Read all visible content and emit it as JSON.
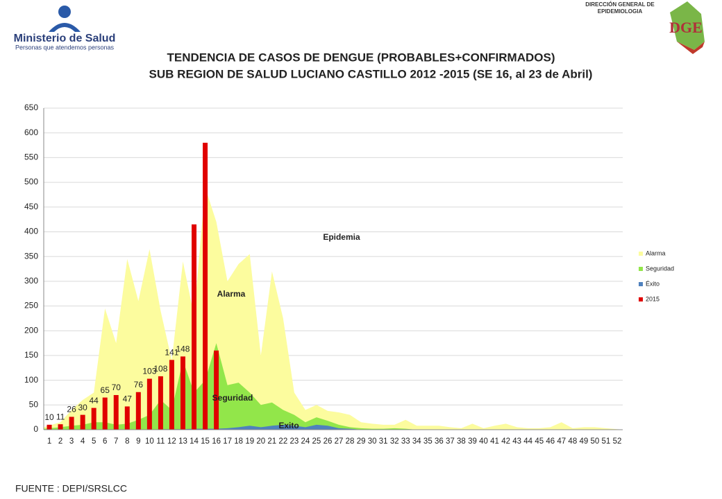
{
  "header": {
    "ministry": "Ministerio de Salud",
    "slogan": "Personas que atendemos personas",
    "agency_line1": "DIRECCIÓN GENERAL DE",
    "agency_line2": "EPIDEMIOLOGIA",
    "agency_logo": "DGE"
  },
  "footer": {
    "source": "FUENTE : DEPI/SRSLCC"
  },
  "chart_data": {
    "type": "combo",
    "title": "TENDENCIA DE CASOS DE DENGUE (PROBABLES+CONFIRMADOS)",
    "subtitle": "SUB REGION DE SALUD LUCIANO CASTILLO 2012 -2015 (SE 16, al 23 de Abril)",
    "annotations": [
      "Epidemia",
      "Alarma",
      "Seguridad",
      "Exito"
    ],
    "categories": [
      "1",
      "2",
      "3",
      "4",
      "5",
      "6",
      "7",
      "8",
      "9",
      "10",
      "11",
      "12",
      "13",
      "14",
      "15",
      "16",
      "17",
      "18",
      "19",
      "20",
      "21",
      "22",
      "23",
      "24",
      "25",
      "26",
      "27",
      "28",
      "29",
      "30",
      "31",
      "32",
      "33",
      "34",
      "35",
      "36",
      "37",
      "38",
      "39",
      "40",
      "41",
      "42",
      "43",
      "44",
      "45",
      "46",
      "47",
      "48",
      "49",
      "50",
      "51",
      "52"
    ],
    "ylim": [
      0,
      650
    ],
    "yticks": [
      0,
      50,
      100,
      150,
      200,
      250,
      300,
      350,
      400,
      450,
      500,
      550,
      600,
      650
    ],
    "grid": true,
    "legend": "right",
    "series": [
      {
        "name": "Alarma",
        "type": "area",
        "color": "#fcfc9e",
        "values": [
          5,
          15,
          40,
          60,
          75,
          245,
          175,
          345,
          260,
          365,
          240,
          140,
          340,
          230,
          490,
          420,
          300,
          335,
          355,
          150,
          320,
          225,
          75,
          40,
          50,
          38,
          35,
          30,
          15,
          12,
          10,
          10,
          20,
          8,
          8,
          8,
          5,
          3,
          12,
          3,
          8,
          12,
          5,
          3,
          3,
          5,
          15,
          3,
          5,
          5,
          3,
          0
        ]
      },
      {
        "name": "Seguridad",
        "type": "area",
        "color": "#92e64a",
        "values": [
          2,
          5,
          8,
          10,
          15,
          15,
          10,
          12,
          20,
          30,
          60,
          40,
          140,
          75,
          100,
          175,
          90,
          95,
          75,
          50,
          55,
          40,
          30,
          15,
          25,
          18,
          10,
          5,
          3,
          2,
          2,
          3,
          2,
          0,
          0,
          0,
          0,
          0,
          0,
          0,
          0,
          0,
          0,
          0,
          0,
          0,
          0,
          0,
          0,
          0,
          0,
          0
        ]
      },
      {
        "name": "Éxito",
        "type": "area",
        "color": "#4f81bd",
        "values": [
          0,
          0,
          0,
          0,
          0,
          0,
          0,
          0,
          0,
          0,
          1,
          1,
          1,
          2,
          2,
          2,
          3,
          5,
          8,
          5,
          8,
          10,
          8,
          5,
          10,
          8,
          3,
          2,
          0,
          0,
          0,
          0,
          0,
          0,
          0,
          0,
          0,
          0,
          0,
          0,
          0,
          0,
          0,
          0,
          0,
          0,
          0,
          0,
          0,
          0,
          0,
          0
        ]
      },
      {
        "name": "2015",
        "type": "bar",
        "color": "#e00000",
        "values": [
          10,
          11,
          26,
          30,
          44,
          65,
          70,
          47,
          76,
          103,
          108,
          141,
          148,
          415,
          580,
          160,
          null,
          null,
          null,
          null,
          null,
          null,
          null,
          null,
          null,
          null,
          null,
          null,
          null,
          null,
          null,
          null,
          null,
          null,
          null,
          null,
          null,
          null,
          null,
          null,
          null,
          null,
          null,
          null,
          null,
          null,
          null,
          null,
          null,
          null,
          null,
          null
        ],
        "value_labels": [
          "10",
          "11",
          "26",
          "30",
          "44",
          "65",
          "70",
          "47",
          "76",
          "103",
          "108",
          "141",
          "148",
          null,
          null,
          null,
          null,
          null,
          null,
          null,
          null,
          null,
          null,
          null,
          null,
          null,
          null,
          null,
          null,
          null,
          null,
          null,
          null,
          null,
          null,
          null,
          null,
          null,
          null,
          null,
          null,
          null,
          null,
          null,
          null,
          null,
          null,
          null,
          null,
          null,
          null,
          null
        ]
      }
    ]
  }
}
